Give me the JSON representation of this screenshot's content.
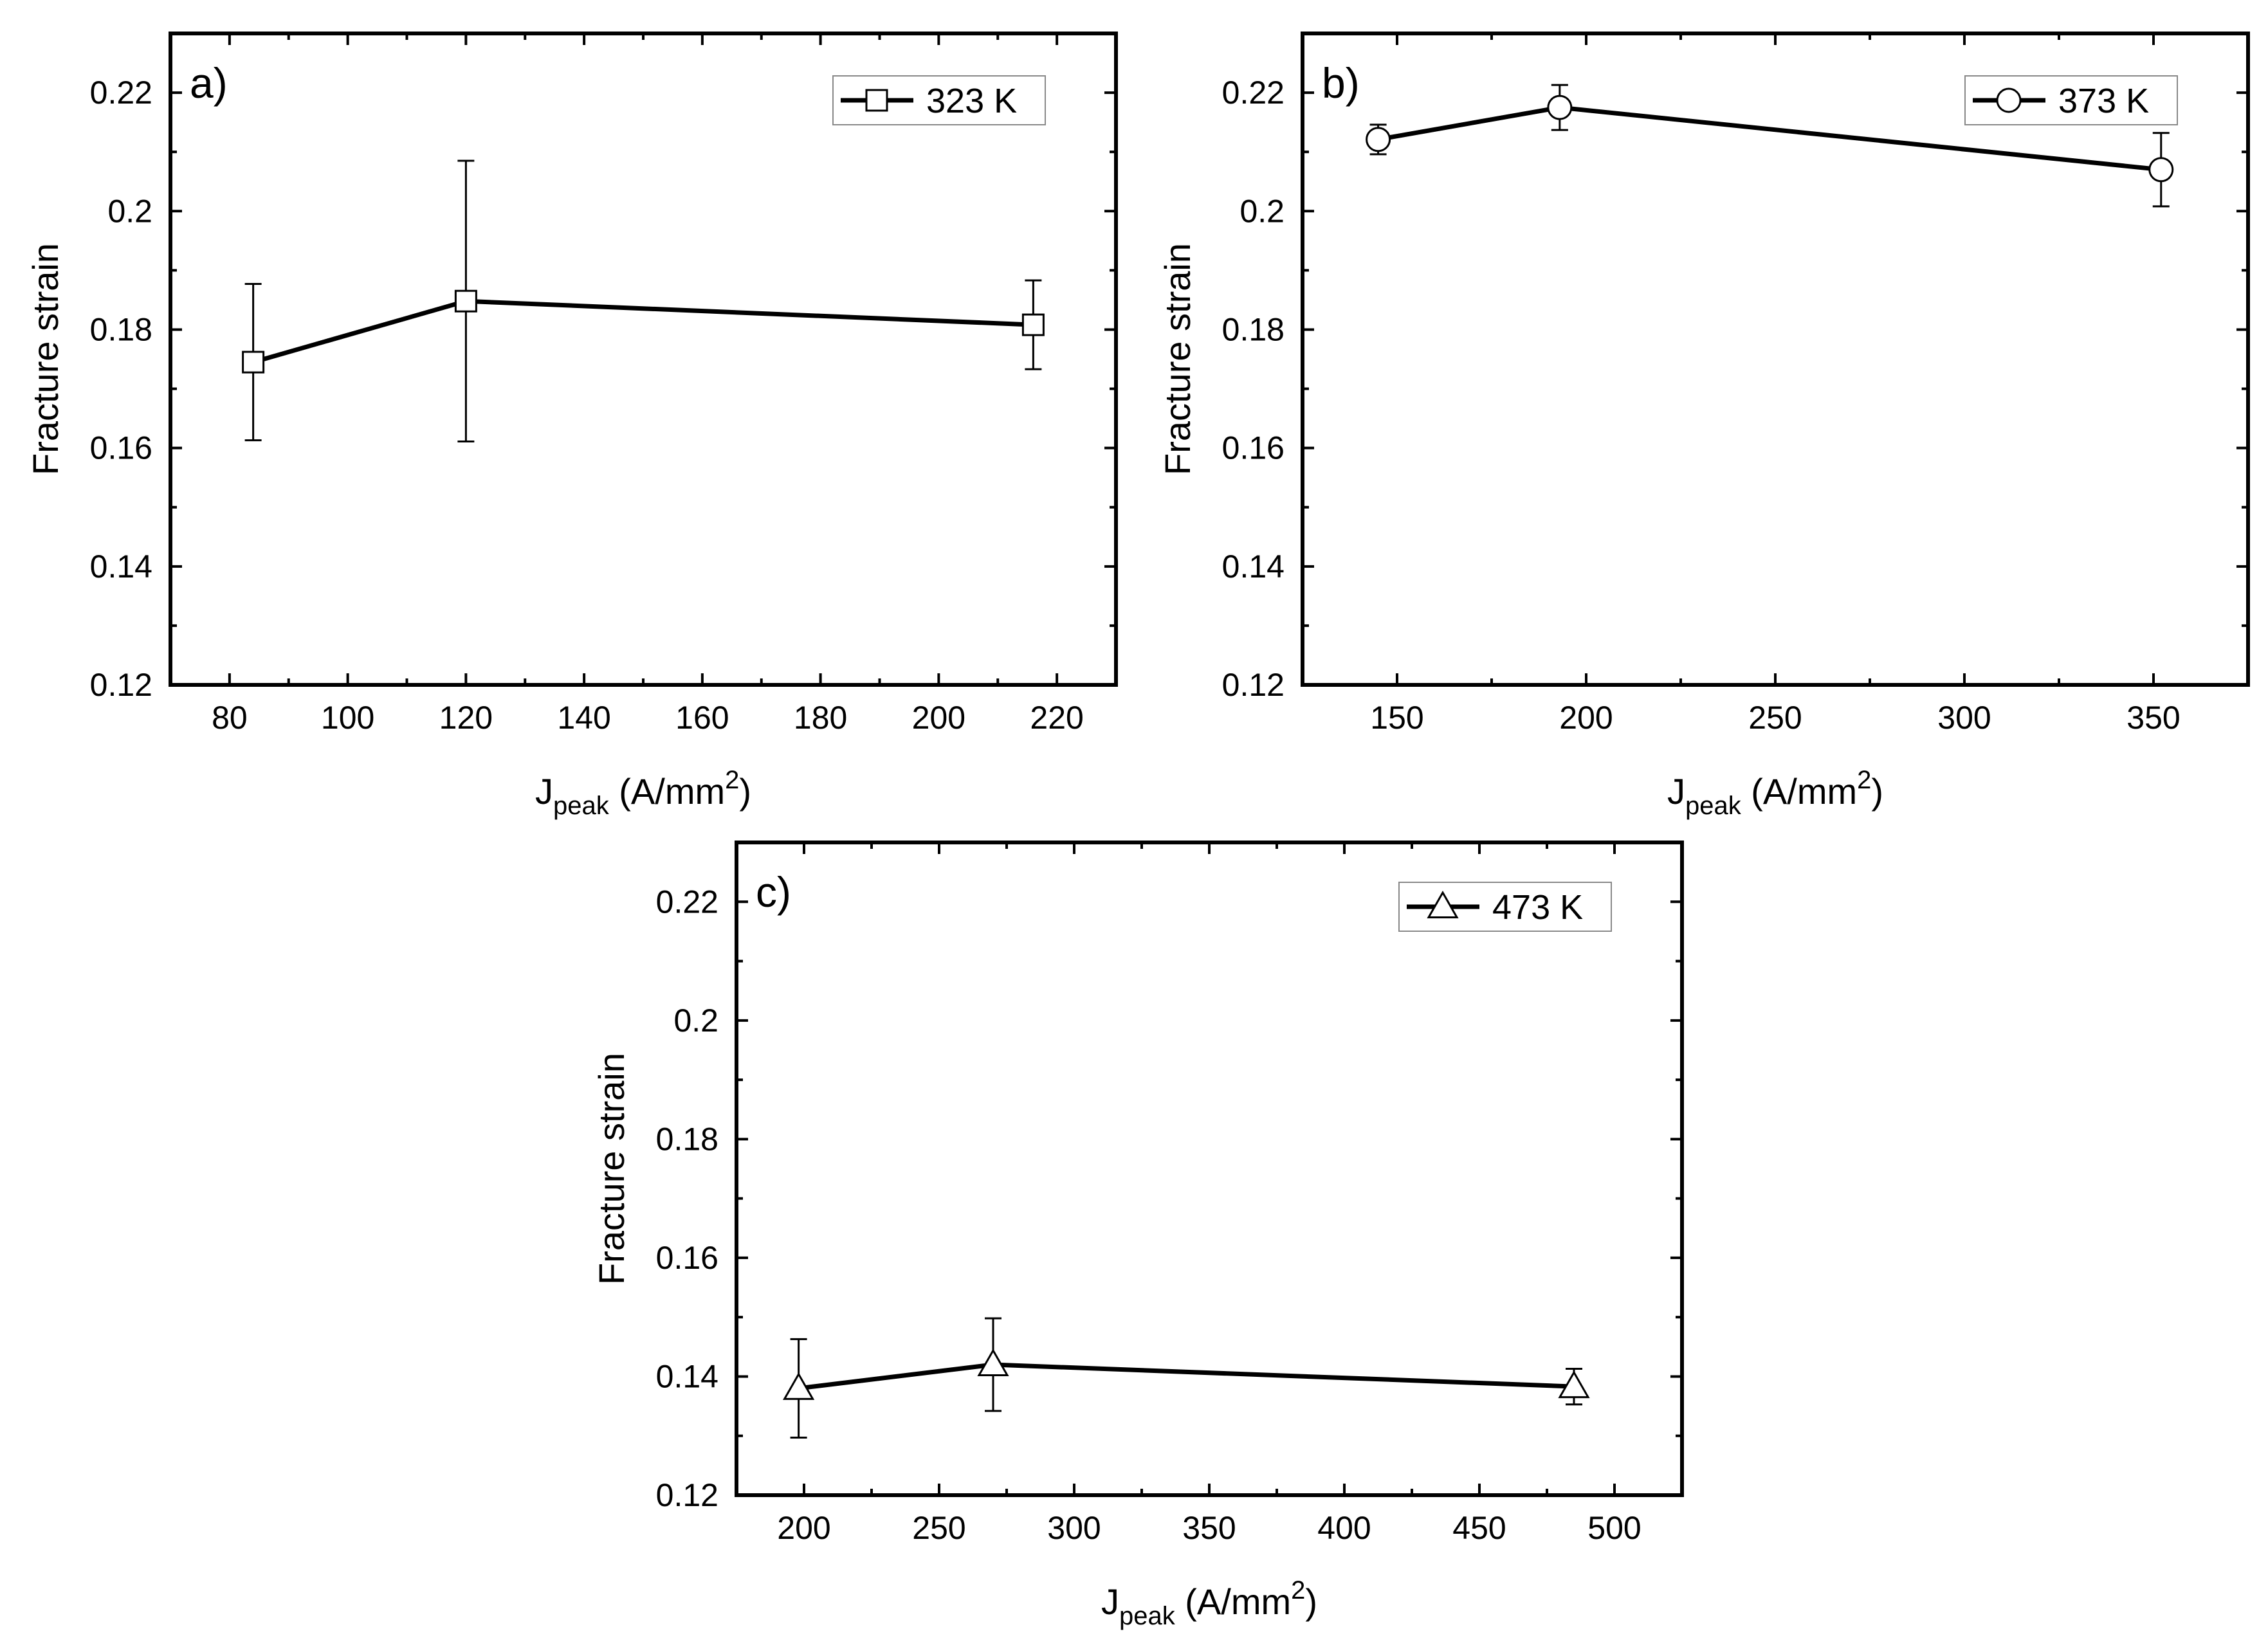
{
  "chart_data": [
    {
      "type": "line",
      "panel_label": "a)",
      "xlabel": {
        "main": "J",
        "sub": "peak",
        "unit_pre": " (A/mm",
        "sup": "2",
        "unit_post": ")"
      },
      "ylabel": "Fracture strain",
      "xlim": [
        70,
        230
      ],
      "ylim": [
        0.12,
        0.23
      ],
      "xticks": [
        80,
        100,
        120,
        140,
        160,
        180,
        200,
        220
      ],
      "xtick_labels": [
        "80",
        "100",
        "120",
        "140",
        "160",
        "180",
        "200",
        "220"
      ],
      "yticks": [
        0.12,
        0.14,
        0.16,
        0.18,
        0.2,
        0.22
      ],
      "ytick_labels": [
        "0.12",
        "0.14",
        "0.16",
        "0.18",
        "0.2",
        "0.22"
      ],
      "legend_position": "top-right",
      "series": [
        {
          "name": "323 K",
          "marker": "square",
          "x": [
            84,
            120,
            216
          ],
          "y": [
            0.1745,
            0.1848,
            0.1808
          ],
          "err": [
            0.0132,
            0.0237,
            0.0075
          ]
        }
      ]
    },
    {
      "type": "line",
      "panel_label": "b)",
      "xlabel": {
        "main": "J",
        "sub": "peak",
        "unit_pre": " (A/mm",
        "sup": "2",
        "unit_post": ")"
      },
      "ylabel": "Fracture strain",
      "xlim": [
        125,
        375
      ],
      "ylim": [
        0.12,
        0.23
      ],
      "xticks": [
        150,
        200,
        250,
        300,
        350
      ],
      "xtick_labels": [
        "150",
        "200",
        "250",
        "300",
        "350"
      ],
      "yticks": [
        0.12,
        0.14,
        0.16,
        0.18,
        0.2,
        0.22
      ],
      "ytick_labels": [
        "0.12",
        "0.14",
        "0.16",
        "0.18",
        "0.2",
        "0.22"
      ],
      "legend_position": "top-right",
      "series": [
        {
          "name": "373 K",
          "marker": "circle",
          "x": [
            145,
            193,
            352
          ],
          "y": [
            0.2121,
            0.2175,
            0.207
          ],
          "err": [
            0.0025,
            0.0038,
            0.0062
          ]
        }
      ]
    },
    {
      "type": "line",
      "panel_label": "c)",
      "xlabel": {
        "main": "J",
        "sub": "peak",
        "unit_pre": " (A/mm",
        "sup": "2",
        "unit_post": ")"
      },
      "ylabel": "Fracture strain",
      "xlim": [
        175,
        525
      ],
      "ylim": [
        0.12,
        0.23
      ],
      "xticks": [
        200,
        250,
        300,
        350,
        400,
        450,
        500
      ],
      "xtick_labels": [
        "200",
        "250",
        "300",
        "350",
        "400",
        "450",
        "500"
      ],
      "yticks": [
        0.12,
        0.14,
        0.16,
        0.18,
        0.2,
        0.22
      ],
      "ytick_labels": [
        "0.12",
        "0.14",
        "0.16",
        "0.18",
        "0.2",
        "0.22"
      ],
      "legend_position": "top-right",
      "series": [
        {
          "name": "473 K",
          "marker": "triangle",
          "x": [
            198,
            270,
            485
          ],
          "y": [
            0.138,
            0.142,
            0.1383
          ],
          "err": [
            0.0083,
            0.0078,
            0.003
          ]
        }
      ]
    }
  ]
}
